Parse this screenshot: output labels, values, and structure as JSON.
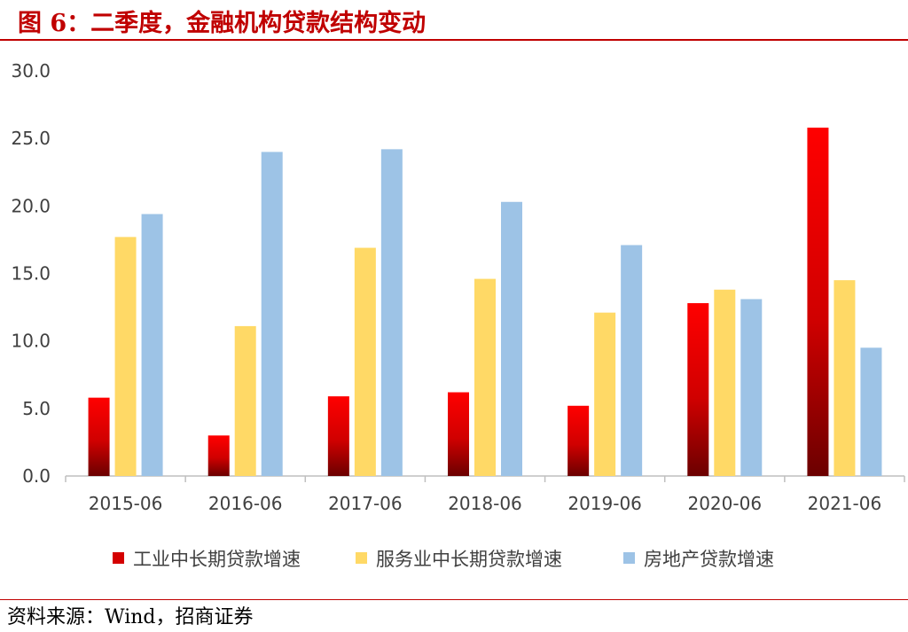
{
  "header": {
    "title": "图 6：二季度，金融机构贷款结构变动"
  },
  "footer": {
    "source": "资料来源：Wind，招商证券"
  },
  "chart_data": {
    "type": "bar",
    "categories": [
      "2015-06",
      "2016-06",
      "2017-06",
      "2018-06",
      "2019-06",
      "2020-06",
      "2021-06"
    ],
    "series": [
      {
        "name": "工业中长期贷款增速",
        "values": [
          5.8,
          3.0,
          5.9,
          6.2,
          5.2,
          12.8,
          25.8
        ],
        "color": "#d40000"
      },
      {
        "name": "服务业中长期贷款增速",
        "values": [
          17.7,
          11.1,
          16.9,
          14.6,
          12.1,
          13.8,
          14.5
        ],
        "color": "#ffd966"
      },
      {
        "name": "房地产贷款增速",
        "values": [
          19.4,
          24.0,
          24.2,
          20.3,
          17.1,
          13.1,
          9.5
        ],
        "color": "#9dc3e6"
      }
    ],
    "ylim": [
      0,
      30
    ],
    "yticks": [
      "0.0",
      "5.0",
      "10.0",
      "15.0",
      "20.0",
      "25.0",
      "30.0"
    ],
    "xlabel": "",
    "ylabel": "",
    "grid": false,
    "legend_position": "bottom"
  }
}
